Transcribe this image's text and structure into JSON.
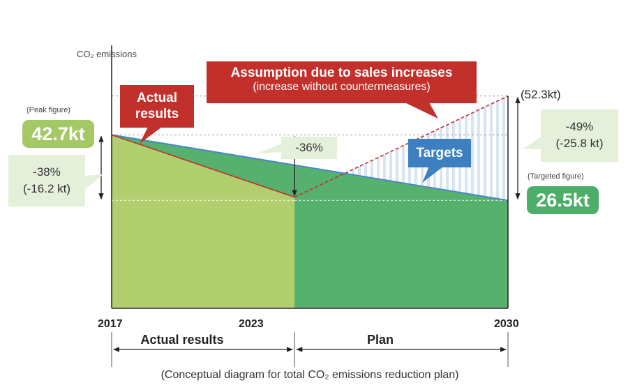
{
  "chart_data": {
    "type": "area",
    "ylabel": "CO₂ emissions",
    "caption": "(Conceptual diagram for total CO₂ emissions reduction plan)",
    "x_ticks": [
      "2017",
      "2023",
      "2030"
    ],
    "ylim": [
      0,
      56
    ],
    "grid": false,
    "series": [
      {
        "name": "Actual results",
        "points": [
          [
            2017,
            42.7
          ],
          [
            2023,
            27.3
          ]
        ],
        "color": "#b1cf6e",
        "line_color": "#c1302b"
      },
      {
        "name": "Targets",
        "points": [
          [
            2017,
            42.7
          ],
          [
            2030,
            26.5
          ]
        ],
        "color": "#56b06e",
        "line_color": "#4a86c5"
      },
      {
        "name": "Assumption due to sales increases",
        "points": [
          [
            2023,
            27.3
          ],
          [
            2030,
            52.3
          ]
        ],
        "line_color": "#c1302b",
        "dashed": true,
        "gap_fill": "#d6e4f3"
      }
    ],
    "annotations": {
      "assumption_title": "Assumption due to sales increases",
      "assumption_sub": "(increase without countermeasures)",
      "actual_callout_1": "Actual",
      "actual_callout_2": "results",
      "targets_callout": "Targets",
      "peak_label": "(Peak figure)",
      "peak_value": "42.7kt",
      "reduction_2023_pct": "-38%",
      "reduction_2023_kt": "(-16.2 kt)",
      "gap_2023": "-36%",
      "assumed_2030": "(52.3kt)",
      "reduction_2030_pct": "-49%",
      "reduction_2030_kt": "(-25.8 kt)",
      "target_label": "(Targeted figure)",
      "target_value": "26.5kt"
    },
    "periods": [
      {
        "label": "Actual results",
        "from": "2017",
        "to": "2023"
      },
      {
        "label": "Plan",
        "from": "2023",
        "to": "2030"
      }
    ]
  }
}
